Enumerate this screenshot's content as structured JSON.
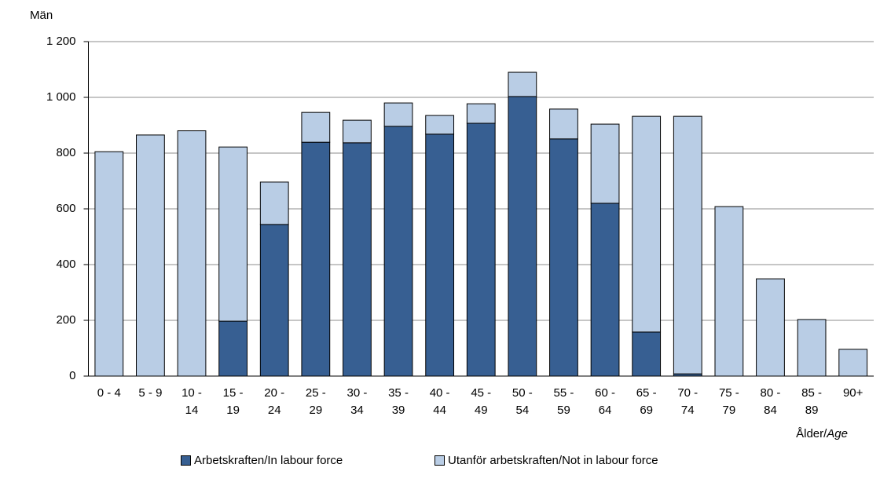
{
  "chart_data": {
    "type": "stacked_bar",
    "ylabel": "Män",
    "xlabel": [
      "Ålder/",
      "Age"
    ],
    "categories": [
      "0 - 4",
      "5 - 9",
      "10 - 14",
      "15 - 19",
      "20 - 24",
      "25 - 29",
      "30 - 34",
      "35 - 39",
      "40 - 44",
      "45 - 49",
      "50 - 54",
      "55 - 59",
      "60 - 64",
      "65 - 69",
      "70 - 74",
      "75 - 79",
      "80 - 84",
      "85 - 89",
      "90+"
    ],
    "series": [
      {
        "name": "Arbetskraften/In labour force",
        "color": "#375f92",
        "values": [
          0,
          0,
          0,
          197,
          544,
          839,
          837,
          896,
          868,
          907,
          1003,
          851,
          620,
          158,
          8,
          0,
          0,
          0,
          0
        ]
      },
      {
        "name": "Utanför arbetskraften/Not in labour force",
        "color": "#b9cde5",
        "values": [
          805,
          865,
          880,
          625,
          152,
          107,
          81,
          84,
          67,
          70,
          87,
          107,
          284,
          774,
          924,
          608,
          349,
          203,
          96
        ]
      }
    ],
    "ylim": [
      0,
      1200
    ],
    "yticks": [
      0,
      200,
      400,
      600,
      800,
      {
        "value": 1000,
        "label": "1 000"
      },
      {
        "value": 1200,
        "label": "1 200"
      }
    ],
    "grid": true
  }
}
